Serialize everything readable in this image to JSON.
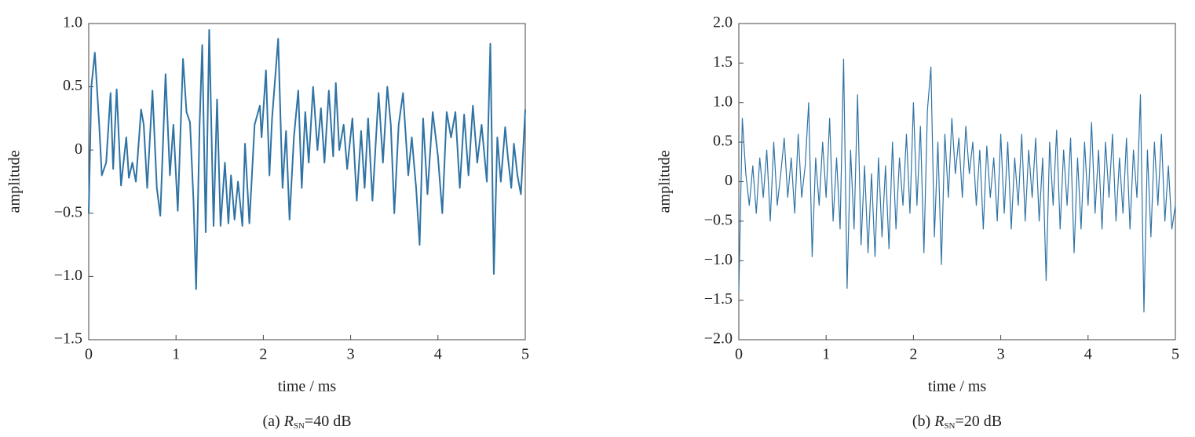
{
  "chart_data": [
    {
      "type": "line",
      "xlabel": "time / ms",
      "ylabel": "amplitude",
      "caption": {
        "prefix": "(a) ",
        "symbol": "R",
        "subscript": "SN",
        "suffix": "=40 dB"
      },
      "xlim": [
        0,
        5
      ],
      "xticks": [
        0,
        1,
        2,
        3,
        4,
        5
      ],
      "ylim": [
        -1.5,
        1
      ],
      "yticks": [
        {
          "value": -1.5,
          "label": "−1.5"
        },
        {
          "value": -1,
          "label": "−1.0"
        },
        {
          "value": -0.5,
          "label": "−0.5"
        },
        0,
        0.5,
        {
          "value": 1,
          "label": "1.0"
        }
      ],
      "series": [
        {
          "color": "#2f73a4",
          "x": [
            0,
            0.03,
            0.07,
            0.12,
            0.15,
            0.2,
            0.25,
            0.28,
            0.32,
            0.37,
            0.43,
            0.46,
            0.5,
            0.54,
            0.6,
            0.63,
            0.67,
            0.73,
            0.78,
            0.82,
            0.88,
            0.93,
            0.97,
            1.02,
            1.08,
            1.12,
            1.16,
            1.2,
            1.23,
            1.27,
            1.3,
            1.34,
            1.38,
            1.43,
            1.47,
            1.51,
            1.56,
            1.6,
            1.63,
            1.67,
            1.71,
            1.76,
            1.79,
            1.84,
            1.9,
            1.96,
            1.98,
            2.03,
            2.07,
            2.1,
            2.17,
            2.22,
            2.26,
            2.3,
            2.35,
            2.4,
            2.44,
            2.48,
            2.52,
            2.57,
            2.62,
            2.66,
            2.7,
            2.75,
            2.8,
            2.83,
            2.87,
            2.92,
            2.96,
            3.02,
            3.07,
            3.12,
            3.16,
            3.2,
            3.25,
            3.32,
            3.37,
            3.42,
            3.46,
            3.5,
            3.55,
            3.6,
            3.66,
            3.7,
            3.75,
            3.79,
            3.83,
            3.88,
            3.94,
            4.0,
            4.05,
            4.1,
            4.15,
            4.2,
            4.25,
            4.3,
            4.35,
            4.4,
            4.45,
            4.5,
            4.56,
            4.6,
            4.64,
            4.68,
            4.72,
            4.77,
            4.8,
            4.84,
            4.87,
            4.91,
            4.95,
            5.0
          ],
          "values": [
            -0.5,
            0.5,
            0.77,
            0.2,
            -0.2,
            -0.1,
            0.45,
            -0.15,
            0.48,
            -0.28,
            0.1,
            -0.22,
            -0.1,
            -0.25,
            0.32,
            0.2,
            -0.3,
            0.47,
            -0.3,
            -0.52,
            0.6,
            -0.2,
            0.2,
            -0.48,
            0.72,
            0.3,
            0.22,
            -0.4,
            -1.1,
            0.2,
            0.83,
            -0.65,
            0.95,
            -0.6,
            0.4,
            -0.6,
            -0.1,
            -0.58,
            -0.2,
            -0.55,
            -0.25,
            -0.6,
            0.05,
            -0.58,
            0.2,
            0.35,
            0.1,
            0.63,
            -0.2,
            0.25,
            0.88,
            -0.3,
            0.15,
            -0.55,
            0.1,
            0.47,
            -0.3,
            0.3,
            -0.1,
            0.5,
            0,
            0.33,
            -0.1,
            0.47,
            -0.05,
            0.53,
            0,
            0.2,
            -0.15,
            0.25,
            -0.4,
            0.15,
            -0.3,
            0.25,
            -0.4,
            0.45,
            -0.1,
            0.5,
            0.2,
            -0.5,
            0.2,
            0.45,
            -0.2,
            0.1,
            -0.3,
            -0.75,
            0.25,
            -0.35,
            0.3,
            -0.05,
            -0.5,
            0.3,
            0.1,
            0.3,
            -0.3,
            0.28,
            -0.2,
            0.35,
            -0.1,
            0.2,
            -0.25,
            0.84,
            -0.98,
            0.1,
            -0.25,
            0.18,
            -0.05,
            -0.3,
            0.05,
            -0.2,
            -0.35,
            0.32
          ]
        }
      ]
    },
    {
      "type": "line",
      "xlabel": "time / ms",
      "ylabel": "amplitude",
      "caption": {
        "prefix": "(b) ",
        "symbol": "R",
        "subscript": "SN",
        "suffix": "=20 dB"
      },
      "xlim": [
        0,
        5
      ],
      "xticks": [
        0,
        1,
        2,
        3,
        4,
        5
      ],
      "ylim": [
        -2,
        2
      ],
      "yticks": [
        {
          "value": -2,
          "label": "−2.0"
        },
        {
          "value": -1.5,
          "label": "−1.5"
        },
        {
          "value": -1,
          "label": "−1.0"
        },
        {
          "value": -0.5,
          "label": "−0.5"
        },
        0,
        0.5,
        {
          "value": 1,
          "label": "1.0"
        },
        1.5,
        {
          "value": 2,
          "label": "2.0"
        }
      ],
      "series": [
        {
          "color": "#2f73a4",
          "x": [
            0,
            0.04,
            0.08,
            0.12,
            0.16,
            0.2,
            0.24,
            0.28,
            0.32,
            0.36,
            0.4,
            0.44,
            0.48,
            0.52,
            0.56,
            0.6,
            0.64,
            0.68,
            0.72,
            0.76,
            0.8,
            0.84,
            0.88,
            0.92,
            0.96,
            1.0,
            1.04,
            1.08,
            1.12,
            1.16,
            1.2,
            1.24,
            1.28,
            1.32,
            1.36,
            1.4,
            1.44,
            1.48,
            1.52,
            1.56,
            1.6,
            1.64,
            1.68,
            1.72,
            1.76,
            1.8,
            1.84,
            1.88,
            1.92,
            1.96,
            2.0,
            2.04,
            2.08,
            2.12,
            2.16,
            2.2,
            2.24,
            2.28,
            2.32,
            2.36,
            2.4,
            2.44,
            2.48,
            2.52,
            2.56,
            2.6,
            2.64,
            2.68,
            2.72,
            2.76,
            2.8,
            2.84,
            2.88,
            2.92,
            2.96,
            3.0,
            3.04,
            3.08,
            3.12,
            3.16,
            3.2,
            3.24,
            3.28,
            3.32,
            3.36,
            3.4,
            3.44,
            3.48,
            3.52,
            3.56,
            3.6,
            3.64,
            3.68,
            3.72,
            3.76,
            3.8,
            3.84,
            3.88,
            3.92,
            3.96,
            4.0,
            4.04,
            4.08,
            4.12,
            4.16,
            4.2,
            4.24,
            4.28,
            4.32,
            4.36,
            4.4,
            4.44,
            4.48,
            4.52,
            4.56,
            4.6,
            4.64,
            4.68,
            4.72,
            4.76,
            4.8,
            4.84,
            4.88,
            4.92,
            4.96,
            5.0
          ],
          "values": [
            -1.4,
            0.8,
            0.1,
            -0.3,
            0.2,
            -0.4,
            0.3,
            -0.2,
            0.4,
            -0.5,
            0.5,
            -0.3,
            0.1,
            0.55,
            -0.2,
            0.3,
            -0.4,
            0.6,
            -0.2,
            0.2,
            1.0,
            -0.95,
            0.3,
            -0.3,
            0.5,
            -0.2,
            0.8,
            -0.5,
            0.3,
            -0.6,
            1.55,
            -1.35,
            0.4,
            -0.6,
            1.1,
            -0.8,
            0.2,
            -0.9,
            0.1,
            -0.95,
            0.3,
            -0.7,
            0.2,
            -0.85,
            0.5,
            -0.6,
            0.3,
            -0.3,
            0.6,
            -0.4,
            1.0,
            -0.3,
            0.7,
            -0.9,
            0.9,
            1.45,
            -0.7,
            0.5,
            -1.05,
            0.6,
            -0.2,
            0.8,
            0.1,
            0.55,
            -0.2,
            0.7,
            0.1,
            0.5,
            -0.3,
            0.4,
            -0.6,
            0.45,
            -0.2,
            0.3,
            -0.5,
            0.6,
            -0.4,
            0.5,
            -0.6,
            0.3,
            -0.3,
            0.6,
            -0.5,
            0.4,
            -0.2,
            0.55,
            -0.5,
            0.3,
            -1.25,
            0.5,
            -0.3,
            0.65,
            -0.6,
            0.4,
            -0.3,
            0.55,
            -0.9,
            0.3,
            -0.6,
            0.5,
            -0.3,
            0.75,
            -0.4,
            0.4,
            -0.6,
            0.5,
            -0.2,
            0.6,
            -0.5,
            0.3,
            -0.4,
            0.55,
            -0.6,
            0.4,
            -0.2,
            1.1,
            -1.65,
            0.4,
            -0.7,
            0.5,
            -0.3,
            0.6,
            -0.5,
            0.2,
            -0.6,
            -0.3
          ]
        }
      ]
    }
  ]
}
